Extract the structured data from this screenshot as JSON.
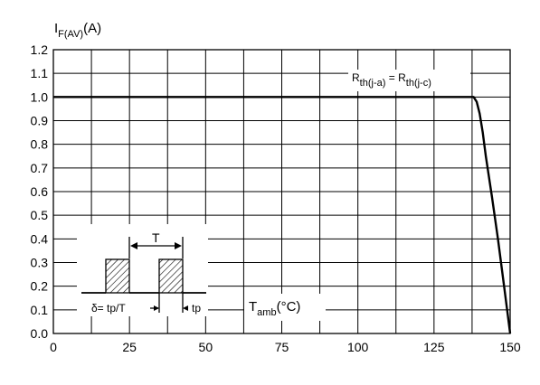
{
  "chart_data": {
    "type": "line",
    "y_axis_label": {
      "main": "I",
      "sub": "F(AV)",
      "unit": "(A)"
    },
    "x_axis_label": {
      "main": "T",
      "sub": "amb",
      "unit": "(°C)"
    },
    "xlim": [
      0,
      150
    ],
    "ylim": [
      0,
      1.2
    ],
    "x_ticks": [
      "0",
      "25",
      "50",
      "75",
      "100",
      "125",
      "150"
    ],
    "y_ticks": [
      "0.0",
      "0.1",
      "0.2",
      "0.3",
      "0.4",
      "0.5",
      "0.6",
      "0.7",
      "0.8",
      "0.9",
      "1.0",
      "1.1",
      "1.2"
    ],
    "grid": true,
    "series": [
      {
        "name": "",
        "points": [
          [
            0,
            1.0
          ],
          [
            138,
            1.0
          ],
          [
            139,
            0.98
          ],
          [
            140,
            0.93
          ],
          [
            141,
            0.85
          ],
          [
            142,
            0.75
          ],
          [
            144,
            0.58
          ],
          [
            146,
            0.4
          ],
          [
            148,
            0.2
          ],
          [
            150,
            0.0
          ]
        ]
      }
    ],
    "annotations": {
      "rth": {
        "r1": "R",
        "s1": "th(j-a)",
        "eq": " = ",
        "r2": "R",
        "s2": "th(j-c)"
      },
      "inset": {
        "period": "T",
        "duty": "δ= tp/T",
        "pulse": "tp"
      }
    }
  }
}
